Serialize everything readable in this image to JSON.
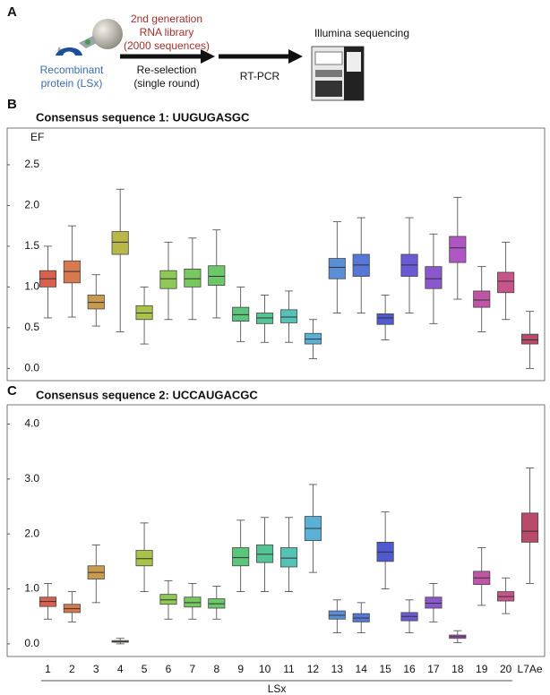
{
  "panel_a": {
    "label": "A",
    "protein": [
      "Recombinant",
      "protein (LSx)"
    ],
    "library": [
      "2nd generation",
      "RNA library",
      "(2000 sequences)"
    ],
    "reselection": [
      "Re-selection",
      "(single round)"
    ],
    "rtpcr": "RT-PCR",
    "sequencing": "Illumina sequencing"
  },
  "panel_b_label": "B",
  "panel_c_label": "C",
  "chart_data": [
    {
      "type": "box",
      "title": "Consensus sequence 1: UUGUGASGC",
      "ylabel": "EF",
      "ylim": [
        -0.15,
        2.95
      ],
      "yticks": [
        {
          "value": 0,
          "label": "0.0"
        },
        0.5,
        {
          "value": 1,
          "label": "1.0"
        },
        1.5,
        {
          "value": 2,
          "label": "2.0"
        },
        2.5
      ],
      "colors": [
        "#d8604f",
        "#d6794f",
        "#c89a4e",
        "#b8b84a",
        "#a8c24a",
        "#8ec857",
        "#78c860",
        "#6dc86a",
        "#5dc47b",
        "#55c495",
        "#56c2b5",
        "#5ab0d5",
        "#5a8fd8",
        "#5578d6",
        "#4f5ad0",
        "#6a5ad4",
        "#8a58cc",
        "#b055c4",
        "#c055a8",
        "#c7558a",
        "#b84a6a"
      ],
      "boxes": [
        {
          "min": 0.62,
          "q1": 1.0,
          "median": 1.1,
          "q3": 1.2,
          "max": 1.5
        },
        {
          "min": 0.63,
          "q1": 1.05,
          "median": 1.19,
          "q3": 1.32,
          "max": 1.75
        },
        {
          "min": 0.52,
          "q1": 0.73,
          "median": 0.81,
          "q3": 0.9,
          "max": 1.15
        },
        {
          "min": 0.45,
          "q1": 1.4,
          "median": 1.55,
          "q3": 1.68,
          "max": 2.2
        },
        {
          "min": 0.3,
          "q1": 0.6,
          "median": 0.68,
          "q3": 0.77,
          "max": 1.0
        },
        {
          "min": 0.6,
          "q1": 0.98,
          "median": 1.1,
          "q3": 1.2,
          "max": 1.55
        },
        {
          "min": 0.6,
          "q1": 1.0,
          "median": 1.1,
          "q3": 1.22,
          "max": 1.6
        },
        {
          "min": 0.62,
          "q1": 1.02,
          "median": 1.13,
          "q3": 1.26,
          "max": 1.7
        },
        {
          "min": 0.33,
          "q1": 0.58,
          "median": 0.66,
          "q3": 0.75,
          "max": 1.0
        },
        {
          "min": 0.32,
          "q1": 0.55,
          "median": 0.62,
          "q3": 0.68,
          "max": 0.9
        },
        {
          "min": 0.32,
          "q1": 0.56,
          "median": 0.63,
          "q3": 0.72,
          "max": 0.95
        },
        {
          "min": 0.12,
          "q1": 0.3,
          "median": 0.36,
          "q3": 0.43,
          "max": 0.6
        },
        {
          "min": 0.68,
          "q1": 1.1,
          "median": 1.24,
          "q3": 1.35,
          "max": 1.8
        },
        {
          "min": 0.68,
          "q1": 1.13,
          "median": 1.27,
          "q3": 1.4,
          "max": 1.85
        },
        {
          "min": 0.35,
          "q1": 0.54,
          "median": 0.62,
          "q3": 0.67,
          "max": 0.9
        },
        {
          "min": 0.68,
          "q1": 1.13,
          "median": 1.27,
          "q3": 1.4,
          "max": 1.85
        },
        {
          "min": 0.55,
          "q1": 0.98,
          "median": 1.1,
          "q3": 1.25,
          "max": 1.65
        },
        {
          "min": 0.85,
          "q1": 1.3,
          "median": 1.48,
          "q3": 1.62,
          "max": 2.1
        },
        {
          "min": 0.45,
          "q1": 0.75,
          "median": 0.84,
          "q3": 0.95,
          "max": 1.25
        },
        {
          "min": 0.6,
          "q1": 0.93,
          "median": 1.07,
          "q3": 1.18,
          "max": 1.55
        },
        {
          "min": 0.0,
          "q1": 0.3,
          "median": 0.35,
          "q3": 0.42,
          "max": 0.7
        }
      ]
    },
    {
      "type": "box",
      "title": "Consensus sequence 2: UCCAUGACGC",
      "xlabel": "LSx",
      "categories": [
        "1",
        "2",
        "3",
        "4",
        "5",
        "6",
        "7",
        "8",
        "9",
        "10",
        "11",
        "12",
        "13",
        "14",
        "15",
        "16",
        "17",
        "18",
        "19",
        "20",
        "L7Ae"
      ],
      "ylim": [
        -0.23,
        4.35
      ],
      "yticks": [
        {
          "value": 0,
          "label": "0.0"
        },
        {
          "value": 1,
          "label": "1.0"
        },
        {
          "value": 2,
          "label": "2.0"
        },
        {
          "value": 3,
          "label": "3.0"
        },
        {
          "value": 4,
          "label": "4.0"
        }
      ],
      "colors": [
        "#d8604f",
        "#d6794f",
        "#c89a4e",
        "#b8b84a",
        "#a8c24a",
        "#8ec857",
        "#78c860",
        "#6dc86a",
        "#5dc47b",
        "#55c495",
        "#56c2b5",
        "#5ab0d5",
        "#5a8fd8",
        "#5578d6",
        "#4f5ad0",
        "#6a5ad4",
        "#8a58cc",
        "#b055c4",
        "#c055a8",
        "#c7558a",
        "#b84a6a"
      ],
      "boxes": [
        {
          "min": 0.45,
          "q1": 0.68,
          "median": 0.77,
          "q3": 0.85,
          "max": 1.1
        },
        {
          "min": 0.4,
          "q1": 0.57,
          "median": 0.64,
          "q3": 0.72,
          "max": 0.95
        },
        {
          "min": 0.75,
          "q1": 1.18,
          "median": 1.3,
          "q3": 1.42,
          "max": 1.8
        },
        {
          "min": 0.0,
          "q1": 0.03,
          "median": 0.04,
          "q3": 0.06,
          "max": 0.1
        },
        {
          "min": 0.95,
          "q1": 1.42,
          "median": 1.55,
          "q3": 1.7,
          "max": 2.2
        },
        {
          "min": 0.45,
          "q1": 0.72,
          "median": 0.8,
          "q3": 0.9,
          "max": 1.15
        },
        {
          "min": 0.45,
          "q1": 0.67,
          "median": 0.75,
          "q3": 0.85,
          "max": 1.1
        },
        {
          "min": 0.45,
          "q1": 0.65,
          "median": 0.73,
          "q3": 0.82,
          "max": 1.05
        },
        {
          "min": 0.95,
          "q1": 1.42,
          "median": 1.57,
          "q3": 1.75,
          "max": 2.25
        },
        {
          "min": 0.95,
          "q1": 1.48,
          "median": 1.63,
          "q3": 1.8,
          "max": 2.3
        },
        {
          "min": 0.95,
          "q1": 1.4,
          "median": 1.56,
          "q3": 1.75,
          "max": 2.3
        },
        {
          "min": 1.3,
          "q1": 1.88,
          "median": 2.1,
          "q3": 2.32,
          "max": 2.9
        },
        {
          "min": 0.2,
          "q1": 0.45,
          "median": 0.52,
          "q3": 0.6,
          "max": 0.8
        },
        {
          "min": 0.2,
          "q1": 0.4,
          "median": 0.47,
          "q3": 0.55,
          "max": 0.75
        },
        {
          "min": 1.0,
          "q1": 1.5,
          "median": 1.67,
          "q3": 1.85,
          "max": 2.4
        },
        {
          "min": 0.2,
          "q1": 0.42,
          "median": 0.5,
          "q3": 0.57,
          "max": 0.8
        },
        {
          "min": 0.4,
          "q1": 0.65,
          "median": 0.74,
          "q3": 0.85,
          "max": 1.1
        },
        {
          "min": 0.02,
          "q1": 0.1,
          "median": 0.13,
          "q3": 0.16,
          "max": 0.24
        },
        {
          "min": 0.7,
          "q1": 1.08,
          "median": 1.2,
          "q3": 1.32,
          "max": 1.75
        },
        {
          "min": 0.55,
          "q1": 0.78,
          "median": 0.86,
          "q3": 0.95,
          "max": 1.2
        },
        {
          "min": 1.1,
          "q1": 1.85,
          "median": 2.05,
          "q3": 2.38,
          "max": 3.2
        }
      ]
    }
  ]
}
